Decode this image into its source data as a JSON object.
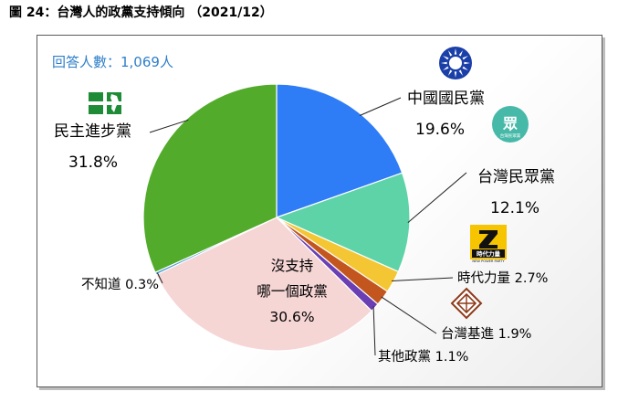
{
  "figure_title": "圖 24：台灣人的政黨支持傾向 （2021/12）",
  "respondents": "回答人數：1,069人",
  "chart_data": {
    "type": "pie",
    "title": "",
    "slices": [
      {
        "name": "中國國民黨",
        "value": 19.6,
        "label": "19.6%",
        "color": "#2e7cf6"
      },
      {
        "name": "台灣民眾黨",
        "value": 12.1,
        "label": "12.1%",
        "color": "#5fd3a8"
      },
      {
        "name": "時代力量",
        "value": 2.7,
        "label": "2.7%",
        "color": "#f4c633"
      },
      {
        "name": "台灣基進",
        "value": 1.9,
        "label": "1.9%",
        "color": "#c2561e"
      },
      {
        "name": "其他政黨",
        "value": 1.1,
        "label": "1.1%",
        "color": "#6a3fb3"
      },
      {
        "name": "沒支持哪一個政黨",
        "value": 30.6,
        "label": "30.6%",
        "color": "#f6d5d5"
      },
      {
        "name": "不知道",
        "value": 0.3,
        "label": "0.3%",
        "color": "#4a9bd8"
      },
      {
        "name": "民主進步黨",
        "value": 31.8,
        "label": "31.8%",
        "color": "#52ab2a"
      }
    ]
  },
  "logos": {
    "kmt_icon": "kmt-sun-icon",
    "tpp_icon": "tpp-logo-icon",
    "tpp_text": "眾",
    "tpp_caption": "台灣民眾黨",
    "npp_icon": "npp-logo-icon",
    "npp_text": "時代力量",
    "npp_caption": "NEW POWER PARTY",
    "tsp_icon": "tsp-logo-icon",
    "dpp_icon": "dpp-logo-icon"
  }
}
